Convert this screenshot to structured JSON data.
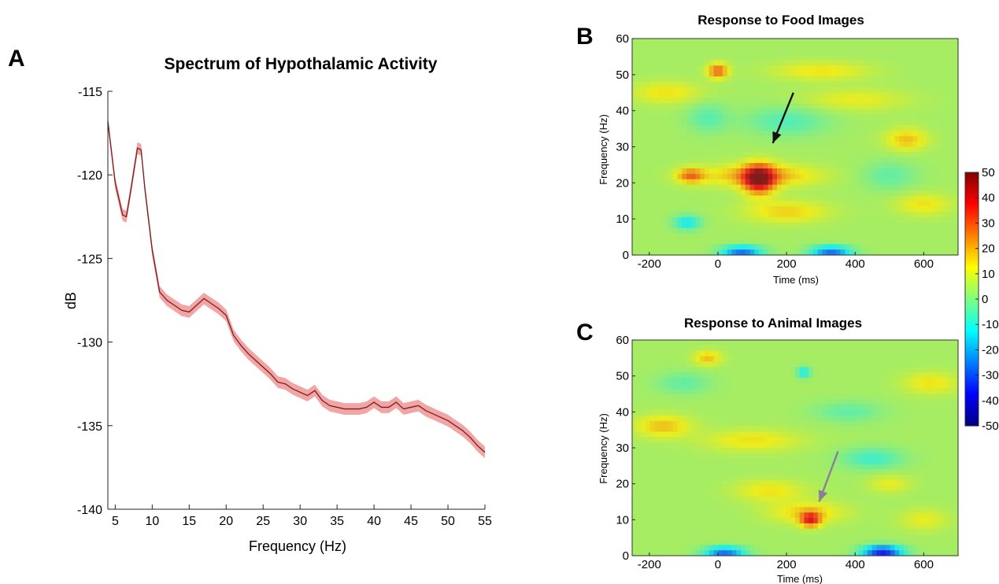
{
  "chart_data": [
    {
      "panel": "A",
      "type": "line",
      "title": "Spectrum of Hypothalamic Activity",
      "xlabel": "Frequency (Hz)",
      "ylabel": "dB",
      "xlim": [
        4,
        55
      ],
      "ylim": [
        -140,
        -115
      ],
      "xticks": [
        5,
        10,
        15,
        20,
        25,
        30,
        35,
        40,
        45,
        50,
        55
      ],
      "yticks": [
        -115,
        -120,
        -125,
        -130,
        -135,
        -140
      ],
      "line_color": "#7a1f1f",
      "band_color": "#f2a5a5",
      "x": [
        4,
        5,
        6,
        6.5,
        7,
        8,
        8.5,
        9,
        10,
        11,
        12,
        13,
        14,
        15,
        16,
        17,
        18,
        19,
        20,
        21,
        22,
        23,
        24,
        25,
        26,
        27,
        28,
        29,
        30,
        31,
        32,
        33,
        34,
        35,
        36,
        37,
        38,
        39,
        40,
        41,
        42,
        43,
        44,
        45,
        46,
        47,
        48,
        49,
        50,
        51,
        52,
        53,
        54,
        55
      ],
      "y": [
        -116.8,
        -120.5,
        -122.4,
        -122.5,
        -121.2,
        -118.4,
        -118.5,
        -120.8,
        -124.5,
        -127.0,
        -127.5,
        -127.8,
        -128.1,
        -128.2,
        -127.8,
        -127.4,
        -127.7,
        -128.0,
        -128.4,
        -129.6,
        -130.2,
        -130.7,
        -131.1,
        -131.5,
        -131.9,
        -132.4,
        -132.5,
        -132.8,
        -133.0,
        -133.2,
        -132.9,
        -133.5,
        -133.8,
        -133.9,
        -134.0,
        -134.0,
        -134.0,
        -133.9,
        -133.6,
        -133.9,
        -133.9,
        -133.6,
        -134.0,
        -133.9,
        -133.8,
        -134.1,
        -134.3,
        -134.5,
        -134.7,
        -135.0,
        -135.3,
        -135.7,
        -136.2,
        -136.6
      ],
      "band_halfwidth": 0.35
    },
    {
      "panel": "B",
      "type": "heatmap",
      "title": "Response to Food Images",
      "xlabel": "Time (ms)",
      "ylabel": "Frequency (Hz)",
      "xlim": [
        -250,
        700
      ],
      "ylim": [
        0,
        60
      ],
      "xticks": [
        -200,
        0,
        200,
        400,
        600
      ],
      "yticks": [
        0,
        10,
        20,
        30,
        40,
        50,
        60
      ],
      "blobs": [
        {
          "t": 120,
          "f": 21,
          "rt": 45,
          "rf": 4,
          "v": 40
        },
        {
          "t": 120,
          "f": 22,
          "rt": 160,
          "rf": 3,
          "v": 18
        },
        {
          "t": -80,
          "f": 22,
          "rt": 40,
          "rf": 2,
          "v": 22
        },
        {
          "t": 0,
          "f": 51,
          "rt": 30,
          "rf": 2,
          "v": 25
        },
        {
          "t": 200,
          "f": 12,
          "rt": 120,
          "rf": 3,
          "v": 12
        },
        {
          "t": 550,
          "f": 32,
          "rt": 60,
          "rf": 3,
          "v": 14
        },
        {
          "t": 300,
          "f": 51,
          "rt": 140,
          "rf": 2.5,
          "v": 10
        },
        {
          "t": -150,
          "f": 45,
          "rt": 100,
          "rf": 3,
          "v": 10
        },
        {
          "t": 400,
          "f": 43,
          "rt": 150,
          "rf": 3,
          "v": 8
        },
        {
          "t": 600,
          "f": 14,
          "rt": 80,
          "rf": 3,
          "v": 10
        },
        {
          "t": 70,
          "f": 1,
          "rt": 60,
          "rf": 1.5,
          "v": -32
        },
        {
          "t": 330,
          "f": 1,
          "rt": 60,
          "rf": 1.5,
          "v": -32
        },
        {
          "t": -90,
          "f": 9,
          "rt": 40,
          "rf": 2,
          "v": -18
        },
        {
          "t": 200,
          "f": 37,
          "rt": 120,
          "rf": 4,
          "v": -10
        },
        {
          "t": -30,
          "f": 38,
          "rt": 60,
          "rf": 4,
          "v": -9
        },
        {
          "t": 500,
          "f": 22,
          "rt": 80,
          "rf": 4,
          "v": -8
        }
      ],
      "arrow": {
        "from": [
          220,
          45
        ],
        "to": [
          160,
          31
        ],
        "color": "#111111"
      }
    },
    {
      "panel": "C",
      "type": "heatmap",
      "title": "Response to Animal Images",
      "xlabel": "Time (ms)",
      "ylabel": "Frequency (Hz)",
      "xlim": [
        -250,
        700
      ],
      "ylim": [
        0,
        60
      ],
      "xticks": [
        -200,
        0,
        200,
        400,
        600
      ],
      "yticks": [
        0,
        10,
        20,
        30,
        40,
        50,
        60
      ],
      "blobs": [
        {
          "t": 270,
          "f": 10,
          "rt": 30,
          "rf": 2,
          "v": 30
        },
        {
          "t": 260,
          "f": 12,
          "rt": 110,
          "rf": 3,
          "v": 12
        },
        {
          "t": -160,
          "f": 36,
          "rt": 80,
          "rf": 3,
          "v": 14
        },
        {
          "t": -30,
          "f": 55,
          "rt": 40,
          "rf": 2,
          "v": 14
        },
        {
          "t": 100,
          "f": 32,
          "rt": 140,
          "rf": 3,
          "v": 10
        },
        {
          "t": 150,
          "f": 18,
          "rt": 100,
          "rf": 3,
          "v": 10
        },
        {
          "t": 620,
          "f": 48,
          "rt": 80,
          "rf": 3,
          "v": 10
        },
        {
          "t": 500,
          "f": 20,
          "rt": 60,
          "rf": 2.5,
          "v": 8
        },
        {
          "t": 600,
          "f": 10,
          "rt": 70,
          "rf": 3,
          "v": 8
        },
        {
          "t": 20,
          "f": 1,
          "rt": 60,
          "rf": 1.5,
          "v": -32
        },
        {
          "t": 480,
          "f": 1,
          "rt": 60,
          "rf": 1.8,
          "v": -42
        },
        {
          "t": 250,
          "f": 51,
          "rt": 20,
          "rf": 1.5,
          "v": -18
        },
        {
          "t": 450,
          "f": 27,
          "rt": 90,
          "rf": 3,
          "v": -12
        },
        {
          "t": -100,
          "f": 48,
          "rt": 80,
          "rf": 3,
          "v": -8
        },
        {
          "t": 380,
          "f": 40,
          "rt": 100,
          "rf": 3,
          "v": -8
        }
      ],
      "arrow": {
        "from": [
          350,
          29
        ],
        "to": [
          295,
          15
        ],
        "color": "#8a7f96"
      }
    },
    {
      "panel": "colorbar",
      "type": "colorbar",
      "range": [
        -50,
        50
      ],
      "ticks": [
        50,
        40,
        30,
        20,
        10,
        0,
        -10,
        -20,
        -30,
        -40,
        -50
      ],
      "tick_labels": [
        "50",
        "40",
        "30",
        "20",
        "10",
        "0",
        "-10",
        "-20",
        "-30",
        "-40",
        "-50"
      ]
    }
  ],
  "panel_letters": {
    "a": "A",
    "b": "B",
    "c": "C"
  }
}
